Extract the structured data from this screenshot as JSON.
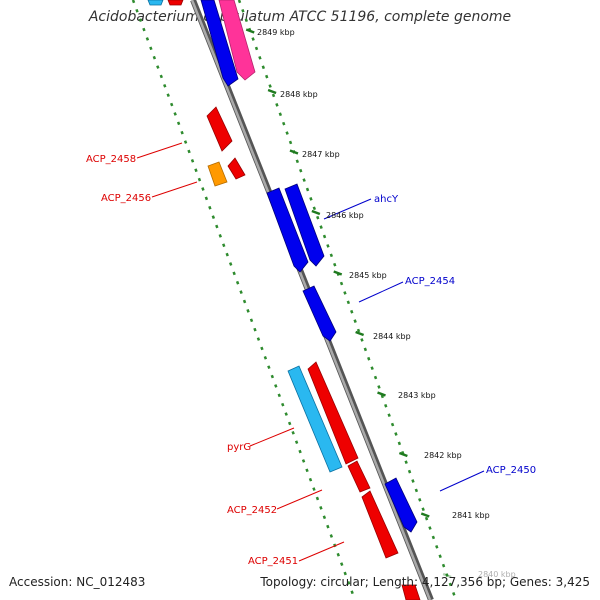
{
  "title": "Acidobacterium capsulatum ATCC 51196, complete genome",
  "accession": "Accession: NC_012483",
  "summary": "Topology: circular; Length: 4,127,356 bp; Genes: 3,425",
  "colors": {
    "backbone": "#888888",
    "dotted_track": "#2e8b2e",
    "forward_gene": "#0000ee",
    "reverse_gene": "#ee0000",
    "rna_gene": "#2ab8f0",
    "pseudo_gene": "#ff3399",
    "other_gene": "#ff9900",
    "forward_label": "#0000cc",
    "reverse_label": "#dd0000"
  },
  "ticks": [
    {
      "label": "2849 kbp",
      "kbp": 2849
    },
    {
      "label": "2848 kbp",
      "kbp": 2848
    },
    {
      "label": "2847 kbp",
      "kbp": 2847
    },
    {
      "label": "2846 kbp",
      "kbp": 2846
    },
    {
      "label": "2845 kbp",
      "kbp": 2845
    },
    {
      "label": "2844 kbp",
      "kbp": 2844
    },
    {
      "label": "2843 kbp",
      "kbp": 2843
    },
    {
      "label": "2842 kbp",
      "kbp": 2842
    },
    {
      "label": "2841 kbp",
      "kbp": 2841
    },
    {
      "label": "2840 kbp",
      "kbp": 2840
    }
  ],
  "gene_labels": [
    {
      "label": "ACP_2458",
      "strand": "reverse"
    },
    {
      "label": "ACP_2456",
      "strand": "reverse"
    },
    {
      "label": "ahcY",
      "strand": "forward"
    },
    {
      "label": "ACP_2454",
      "strand": "forward"
    },
    {
      "label": "pyrG",
      "strand": "reverse"
    },
    {
      "label": "ACP_2450",
      "strand": "forward"
    },
    {
      "label": "ACP_2452",
      "strand": "reverse"
    },
    {
      "label": "ACP_2451",
      "strand": "reverse"
    }
  ]
}
